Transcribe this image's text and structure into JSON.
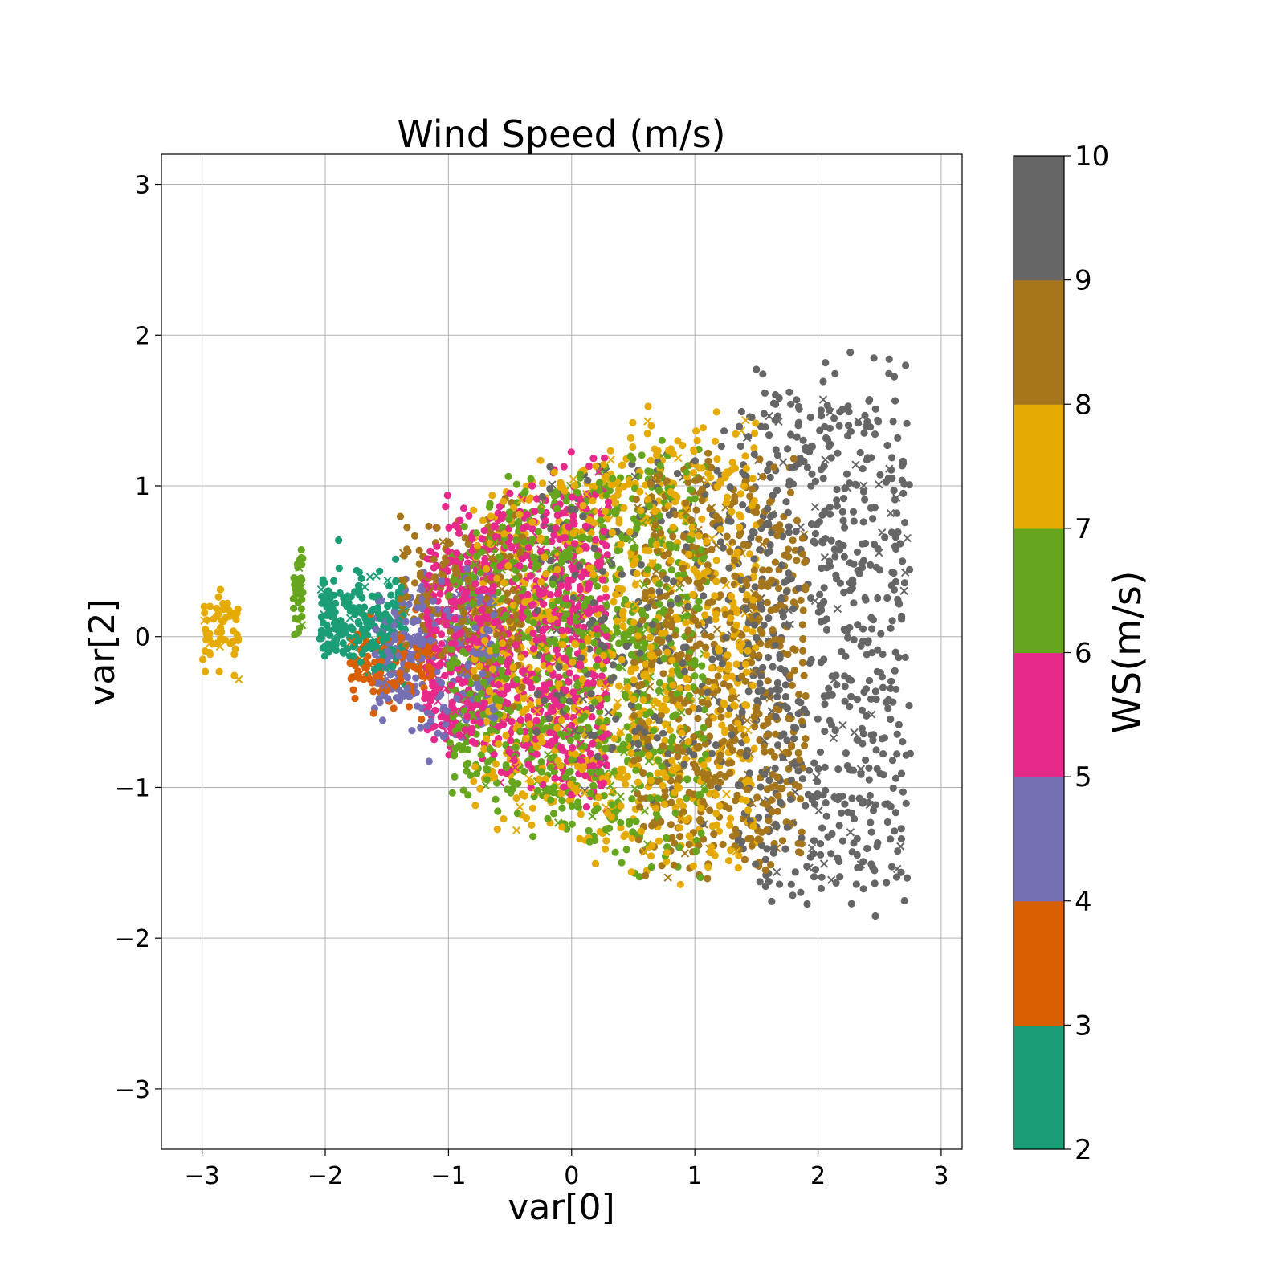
{
  "chart_data": {
    "type": "scatter",
    "title": "Wind Speed (m/s)",
    "xlabel": "var[0]",
    "ylabel": "var[2]",
    "xlim": [
      -3.33,
      3.17
    ],
    "ylim": [
      -3.4,
      3.2
    ],
    "xticks": [
      -3,
      -2,
      -1,
      0,
      1,
      2,
      3
    ],
    "xtick_labels": [
      "−3",
      "−2",
      "−1",
      "0",
      "1",
      "2",
      "3"
    ],
    "yticks": [
      -3,
      -2,
      -1,
      0,
      1,
      2,
      3
    ],
    "ytick_labels": [
      "−3",
      "−2",
      "−1",
      "0",
      "1",
      "2",
      "3"
    ],
    "grid": true,
    "colorbar": {
      "label": "WS(m/s)",
      "range": [
        2,
        10
      ],
      "ticks": [
        2,
        3,
        4,
        5,
        6,
        7,
        8,
        9,
        10
      ],
      "tick_labels": [
        "2",
        "3",
        "4",
        "5",
        "6",
        "7",
        "8",
        "9",
        "10"
      ],
      "bins": [
        {
          "from": 2,
          "to": 3,
          "color": "#1b9e77"
        },
        {
          "from": 3,
          "to": 4,
          "color": "#d95f02"
        },
        {
          "from": 4,
          "to": 5,
          "color": "#7570b3"
        },
        {
          "from": 5,
          "to": 6,
          "color": "#e7298a"
        },
        {
          "from": 6,
          "to": 7,
          "color": "#66a61e"
        },
        {
          "from": 7,
          "to": 8,
          "color": "#e6ab02"
        },
        {
          "from": 8,
          "to": 9,
          "color": "#a6761d"
        },
        {
          "from": 9,
          "to": 10,
          "color": "#666666"
        }
      ]
    },
    "markers": [
      "circle",
      "x"
    ],
    "clusters": [
      {
        "ws_bin": 7,
        "x_center": -2.85,
        "y_center": 0.05,
        "x_spread": 0.15,
        "y_spread": 0.35,
        "count": 60
      },
      {
        "ws_bin": 6,
        "x_center": -2.22,
        "y_center": 0.3,
        "x_spread": 0.04,
        "y_spread": 0.45,
        "count": 45
      },
      {
        "ws_bin": 2,
        "x_center": -1.7,
        "y_center": 0.1,
        "x_spread": 0.35,
        "y_spread": 0.8,
        "count": 220
      },
      {
        "ws_bin": 3,
        "x_center": -1.45,
        "y_center": -0.2,
        "x_spread": 0.35,
        "y_spread": 0.6,
        "count": 120
      },
      {
        "ws_bin": 4,
        "x_center": -1.1,
        "y_center": -0.15,
        "x_spread": 0.5,
        "y_spread": 1.3,
        "count": 320
      },
      {
        "ws_bin": 5,
        "x_center": -0.45,
        "y_center": 0.0,
        "x_spread": 0.75,
        "y_spread": 2.1,
        "count": 900
      },
      {
        "ws_bin": 6,
        "x_center": 0.05,
        "y_center": -0.1,
        "x_spread": 1.05,
        "y_spread": 2.4,
        "count": 1000
      },
      {
        "ws_bin": 8,
        "x_center": -0.9,
        "y_center": 0.25,
        "x_spread": 0.5,
        "y_spread": 1.2,
        "count": 220
      },
      {
        "ws_bin": 7,
        "x_center": 0.35,
        "y_center": -0.1,
        "x_spread": 1.15,
        "y_spread": 2.6,
        "count": 1000
      },
      {
        "ws_bin": 9,
        "x_center": 0.5,
        "y_center": 0.1,
        "x_spread": 0.8,
        "y_spread": 2.0,
        "count": 250
      },
      {
        "ws_bin": 8,
        "x_center": 1.2,
        "y_center": -0.2,
        "x_spread": 0.7,
        "y_spread": 2.3,
        "count": 650
      },
      {
        "ws_bin": 9,
        "x_center": 2.05,
        "y_center": 0.0,
        "x_spread": 0.7,
        "y_spread": 3.0,
        "count": 700
      }
    ]
  }
}
